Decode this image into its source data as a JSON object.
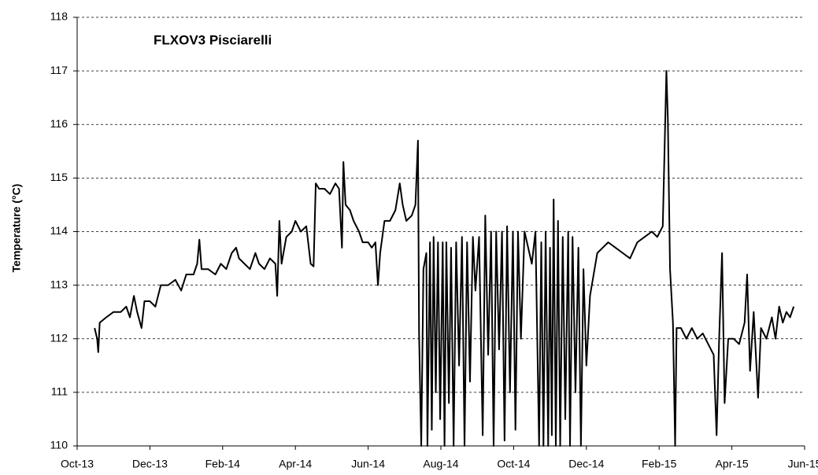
{
  "chart_data": {
    "type": "line",
    "title": "FLXOV3 Pisciarelli",
    "y_label": "Temperature (°C)",
    "color": "#000000",
    "x": [
      0.48,
      0.55,
      0.58,
      0.62,
      0.8,
      1.0,
      1.2,
      1.35,
      1.45,
      1.56,
      1.65,
      1.77,
      1.85,
      2.0,
      2.15,
      2.3,
      2.5,
      2.7,
      2.86,
      3.0,
      3.2,
      3.3,
      3.36,
      3.42,
      3.6,
      3.8,
      3.95,
      4.1,
      4.25,
      4.37,
      4.45,
      4.6,
      4.75,
      4.9,
      5.0,
      5.15,
      5.3,
      5.45,
      5.5,
      5.56,
      5.62,
      5.75,
      5.9,
      6.0,
      6.15,
      6.3,
      6.42,
      6.5,
      6.56,
      6.65,
      6.8,
      6.95,
      7.1,
      7.2,
      7.28,
      7.32,
      7.38,
      7.5,
      7.6,
      7.75,
      7.85,
      8.0,
      8.1,
      8.2,
      8.27,
      8.33,
      8.45,
      8.6,
      8.75,
      8.87,
      8.95,
      9.05,
      9.2,
      9.3,
      9.37,
      9.4,
      9.46,
      9.52,
      9.6,
      9.63,
      9.7,
      9.75,
      9.8,
      9.86,
      9.92,
      9.98,
      10.05,
      10.1,
      10.15,
      10.22,
      10.28,
      10.35,
      10.42,
      10.5,
      10.58,
      10.65,
      10.72,
      10.8,
      10.88,
      10.95,
      11.05,
      11.15,
      11.22,
      11.3,
      11.38,
      11.45,
      11.52,
      11.6,
      11.68,
      11.75,
      11.82,
      11.9,
      11.98,
      12.05,
      12.12,
      12.2,
      12.3,
      12.5,
      12.6,
      12.7,
      12.76,
      12.82,
      12.88,
      12.95,
      13.0,
      13.05,
      13.1,
      13.16,
      13.22,
      13.28,
      13.35,
      13.42,
      13.5,
      13.55,
      13.62,
      13.7,
      13.78,
      13.85,
      13.92,
      14.0,
      14.1,
      14.2,
      14.3,
      14.45,
      14.6,
      14.8,
      15.0,
      15.2,
      15.4,
      15.6,
      15.8,
      15.95,
      16.1,
      16.2,
      16.24,
      16.3,
      16.38,
      16.44,
      16.48,
      16.6,
      16.75,
      16.9,
      17.05,
      17.2,
      17.35,
      17.5,
      17.58,
      17.65,
      17.73,
      17.8,
      17.9,
      18.05,
      18.2,
      18.35,
      18.42,
      18.5,
      18.6,
      18.72,
      18.8,
      18.95,
      19.1,
      19.2,
      19.3,
      19.4,
      19.5,
      19.6,
      19.7
    ],
    "values": [
      112.2,
      112.0,
      111.75,
      112.3,
      112.4,
      112.5,
      112.5,
      112.6,
      112.4,
      112.8,
      112.5,
      112.2,
      112.7,
      112.7,
      112.6,
      113.0,
      113.0,
      113.1,
      112.9,
      113.2,
      113.2,
      113.4,
      113.85,
      113.3,
      113.3,
      113.2,
      113.4,
      113.3,
      113.6,
      113.7,
      113.5,
      113.4,
      113.3,
      113.6,
      113.4,
      113.3,
      113.5,
      113.4,
      112.8,
      114.2,
      113.4,
      113.9,
      114.0,
      114.2,
      114.0,
      114.1,
      113.4,
      113.35,
      114.9,
      114.8,
      114.8,
      114.7,
      114.9,
      114.8,
      113.7,
      115.3,
      114.5,
      114.4,
      114.2,
      114.0,
      113.8,
      113.8,
      113.7,
      113.8,
      113.0,
      113.6,
      114.2,
      114.2,
      114.4,
      114.9,
      114.5,
      114.2,
      114.3,
      114.5,
      115.7,
      112.1,
      110.0,
      113.3,
      113.6,
      110,
      113.8,
      110.3,
      113.9,
      111,
      113.8,
      110.5,
      113.8,
      110,
      113.8,
      110.8,
      113.7,
      110,
      113.8,
      111.5,
      113.9,
      110,
      113.8,
      111.2,
      113.9,
      112.9,
      113.9,
      110.2,
      114.3,
      111.7,
      114.0,
      110.0,
      114.0,
      111.8,
      114.0,
      110.1,
      114.1,
      111.0,
      114.0,
      110.3,
      114.0,
      112.0,
      114.0,
      113.4,
      114.0,
      110.0,
      113.8,
      110,
      114.0,
      110,
      113.7,
      110.2,
      114.6,
      110,
      114.2,
      110,
      113.9,
      110.5,
      114.0,
      110,
      113.9,
      111,
      113.7,
      110,
      113.3,
      111.5,
      112.8,
      113.2,
      113.6,
      113.7,
      113.8,
      113.7,
      113.6,
      113.5,
      113.8,
      113.9,
      114.0,
      113.9,
      114.1,
      117.0,
      116.1,
      113.3,
      112.3,
      110.0,
      112.2,
      112.2,
      112.0,
      112.2,
      112.0,
      112.1,
      111.9,
      111.7,
      110.2,
      112.0,
      113.6,
      110.8,
      112.0,
      112.0,
      111.9,
      112.3,
      113.2,
      111.4,
      112.5,
      110.9,
      112.2,
      112.0,
      112.4,
      112.0,
      112.6,
      112.3,
      112.5,
      112.4,
      112.6
    ],
    "xlim": [
      0,
      20
    ],
    "xticks": [
      {
        "value": 0,
        "label": "Oct-13"
      },
      {
        "value": 2,
        "label": "Dec-13"
      },
      {
        "value": 4,
        "label": "Feb-14"
      },
      {
        "value": 6,
        "label": "Apr-14"
      },
      {
        "value": 8,
        "label": "Jun-14"
      },
      {
        "value": 10,
        "label": "Aug-14"
      },
      {
        "value": 12,
        "label": "Oct-14"
      },
      {
        "value": 14,
        "label": "Dec-14"
      },
      {
        "value": 16,
        "label": "Feb-15"
      },
      {
        "value": 18,
        "label": "Apr-15"
      },
      {
        "value": 20,
        "label": "Jun-15"
      }
    ],
    "ylim": [
      110,
      118
    ],
    "yticks": [
      110,
      111,
      112,
      113,
      114,
      115,
      116,
      117,
      118
    ],
    "grid": true
  }
}
